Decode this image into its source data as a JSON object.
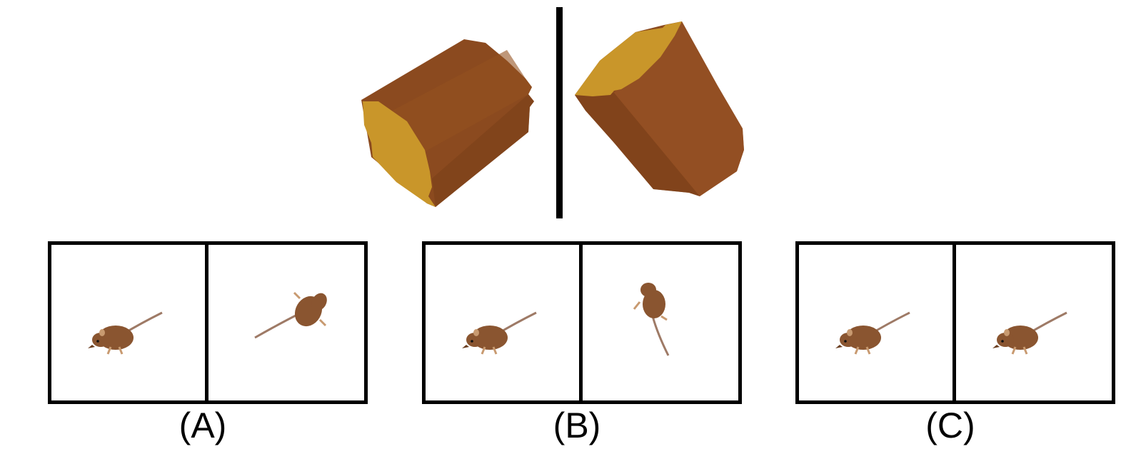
{
  "options": [
    {
      "label": "(A)",
      "left_pose": "side-walking-left",
      "right_pose": "top-down-tail-left"
    },
    {
      "label": "(B)",
      "left_pose": "side-walking-left",
      "right_pose": "top-down-tail-down"
    },
    {
      "label": "(C)",
      "left_pose": "side-walking-left",
      "right_pose": "side-walking-left"
    }
  ],
  "colors": {
    "wood_side": "#8B4A1F",
    "wood_side_light": "#9A5426",
    "wood_end": "#C9962A",
    "mouse_body": "#8A5530",
    "mouse_belly": "#C89A70",
    "mouse_tail": "#9E7A66",
    "line": "#000000"
  }
}
